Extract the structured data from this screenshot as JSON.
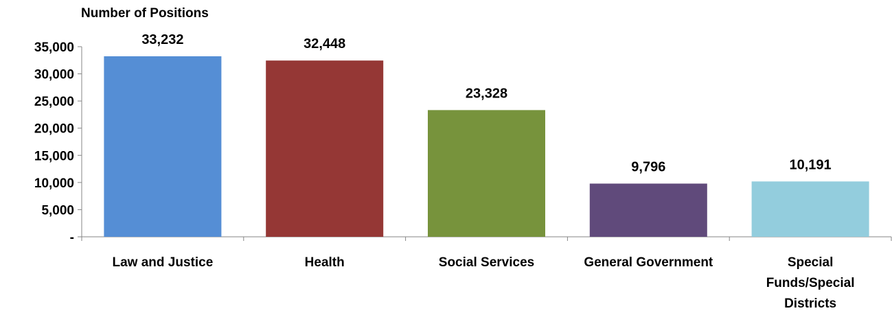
{
  "chart_data": {
    "type": "bar",
    "title": "",
    "ylabel": "Number of Positions",
    "xlabel": "",
    "categories": [
      "Law and Justice",
      "Health",
      "Social Services",
      "General Government",
      "Special Funds/Special Districts"
    ],
    "category_lines": [
      [
        "Law and Justice"
      ],
      [
        "Health"
      ],
      [
        "Social Services"
      ],
      [
        "General Government"
      ],
      [
        "Special",
        "Funds/Special",
        "Districts"
      ]
    ],
    "values": [
      33232,
      32448,
      23328,
      9796,
      10191
    ],
    "data_labels": [
      "33,232",
      "32,448",
      "23,328",
      "9,796",
      "10,191"
    ],
    "colors": [
      "#558ed5",
      "#953735",
      "#77933c",
      "#604a7b",
      "#93cddd"
    ],
    "ylim": [
      0,
      35000
    ],
    "yticks": [
      0,
      5000,
      10000,
      15000,
      20000,
      25000,
      30000,
      35000
    ],
    "ytick_labels": [
      "-",
      "5,000",
      "10,000",
      "15,000",
      "20,000",
      "25,000",
      "30,000",
      "35,000"
    ],
    "grid": false,
    "legend": "none"
  }
}
